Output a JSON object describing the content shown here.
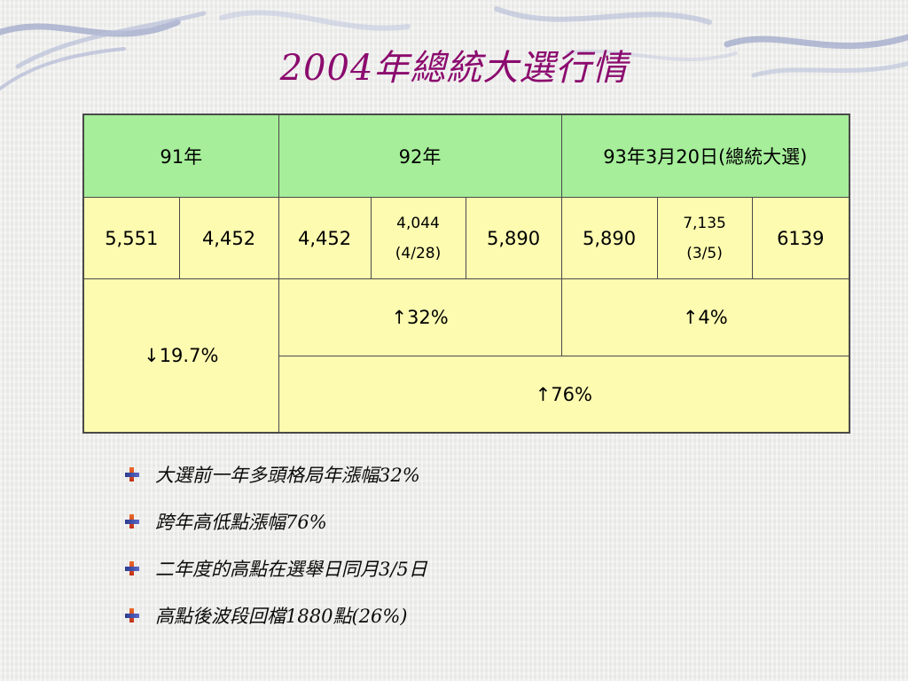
{
  "slide": {
    "title": "2004年總統大選行情"
  },
  "table": {
    "headers": [
      "91年",
      "92年",
      "93年3月20日(總統大選)"
    ],
    "values": {
      "y91_a": "5,551",
      "y91_b": "4,452",
      "y92_a": "4,452",
      "y92_b_value": "4,044",
      "y92_b_date": "(4/28)",
      "y92_c": "5,890",
      "y93_a": "5,890",
      "y93_b_value": "7,135",
      "y93_b_date": "(3/5)",
      "y93_c": "6139"
    },
    "changes": {
      "y91": "↓19.7%",
      "y92": "↑32%",
      "y93": "↑4%",
      "span": "↑76%"
    }
  },
  "bullets": [
    "大選前一年多頭格局年漲幅32%",
    "跨年高低點漲幅76%",
    "二年度的高點在選舉日同月3/5日",
    "高點後波段回檔1880點(26%)"
  ],
  "theme": {
    "title_color": "#8b0a6e",
    "header_bg": "#a6ee9a",
    "body_bg": "#fdfbb0"
  }
}
